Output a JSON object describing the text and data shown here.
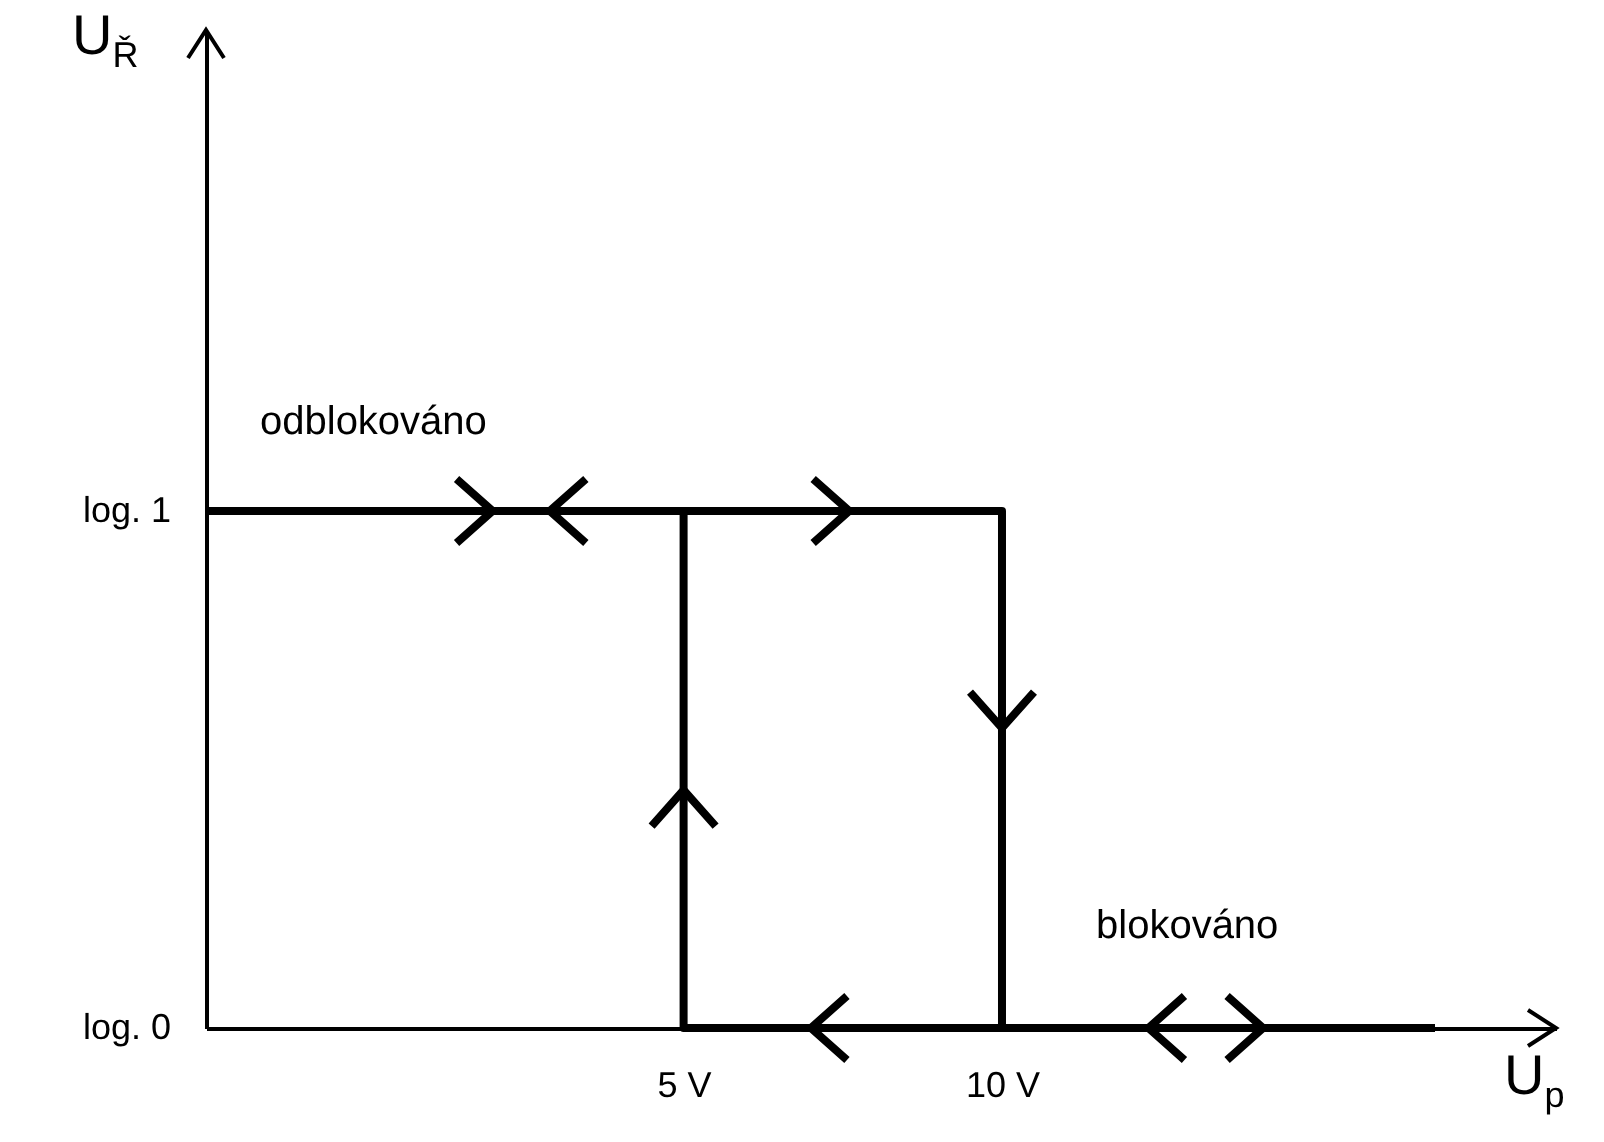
{
  "chart_data": {
    "type": "line",
    "xlabel": "U$_{p}$",
    "ylabel": "U$_{Ř}$",
    "xlim": [
      -2.5,
      18.7
    ],
    "ylim": [
      0,
      1.93
    ],
    "xticks": [
      {
        "value": 5,
        "label": "5 V"
      },
      {
        "value": 10,
        "label": "10 V"
      }
    ],
    "yticks": [
      {
        "value": 0,
        "label": "log. 0"
      },
      {
        "value": 1,
        "label": "log. 1"
      }
    ],
    "grid": false,
    "marker": "none",
    "line_style": "solid",
    "series": [
      {
        "color": "#000000",
        "x": [
          -2.5,
          10,
          10,
          5,
          5
        ],
        "values": [
          1,
          1,
          0,
          0,
          1
        ]
      },
      {
        "color": "#000000",
        "x": [
          10,
          16.8
        ],
        "values": [
          0,
          0
        ]
      }
    ],
    "annotations": [
      "odblokováno",
      "blokováno"
    ]
  }
}
